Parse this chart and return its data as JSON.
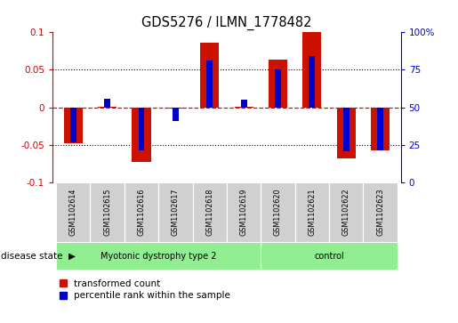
{
  "title": "GDS5276 / ILMN_1778482",
  "samples": [
    "GSM1102614",
    "GSM1102615",
    "GSM1102616",
    "GSM1102617",
    "GSM1102618",
    "GSM1102619",
    "GSM1102620",
    "GSM1102621",
    "GSM1102622",
    "GSM1102623"
  ],
  "red_values": [
    -0.048,
    0.001,
    -0.073,
    -0.002,
    0.086,
    0.001,
    0.064,
    0.1,
    -0.068,
    -0.057
  ],
  "blue_values": [
    -0.046,
    0.012,
    -0.057,
    -0.018,
    0.063,
    0.01,
    0.05,
    0.068,
    -0.058,
    -0.057
  ],
  "ylim": [
    -0.1,
    0.1
  ],
  "yticks_left": [
    -0.1,
    -0.05,
    0.0,
    0.05,
    0.1
  ],
  "ytick_labels_left": [
    "-0.1",
    "-0.05",
    "0",
    "0.05",
    "0.1"
  ],
  "ytick_labels_right": [
    "0",
    "25",
    "50",
    "75",
    "100%"
  ],
  "left_tick_color": "#cc0000",
  "right_tick_color": "#0000cc",
  "dotted_lines": [
    -0.05,
    0.0,
    0.05
  ],
  "red_bar_width": 0.55,
  "blue_bar_width": 0.18,
  "group1_label": "Myotonic dystrophy type 2",
  "group2_label": "control",
  "group1_indices": [
    0,
    1,
    2,
    3,
    4,
    5
  ],
  "group2_indices": [
    6,
    7,
    8,
    9
  ],
  "group_color": "#90EE90",
  "disease_state_label": "disease state",
  "legend_red": "transformed count",
  "legend_blue": "percentile rank within the sample",
  "red_color": "#cc1100",
  "blue_color": "#0000cc",
  "bg_color": "#ffffff",
  "sample_box_color": "#d0d0d0"
}
